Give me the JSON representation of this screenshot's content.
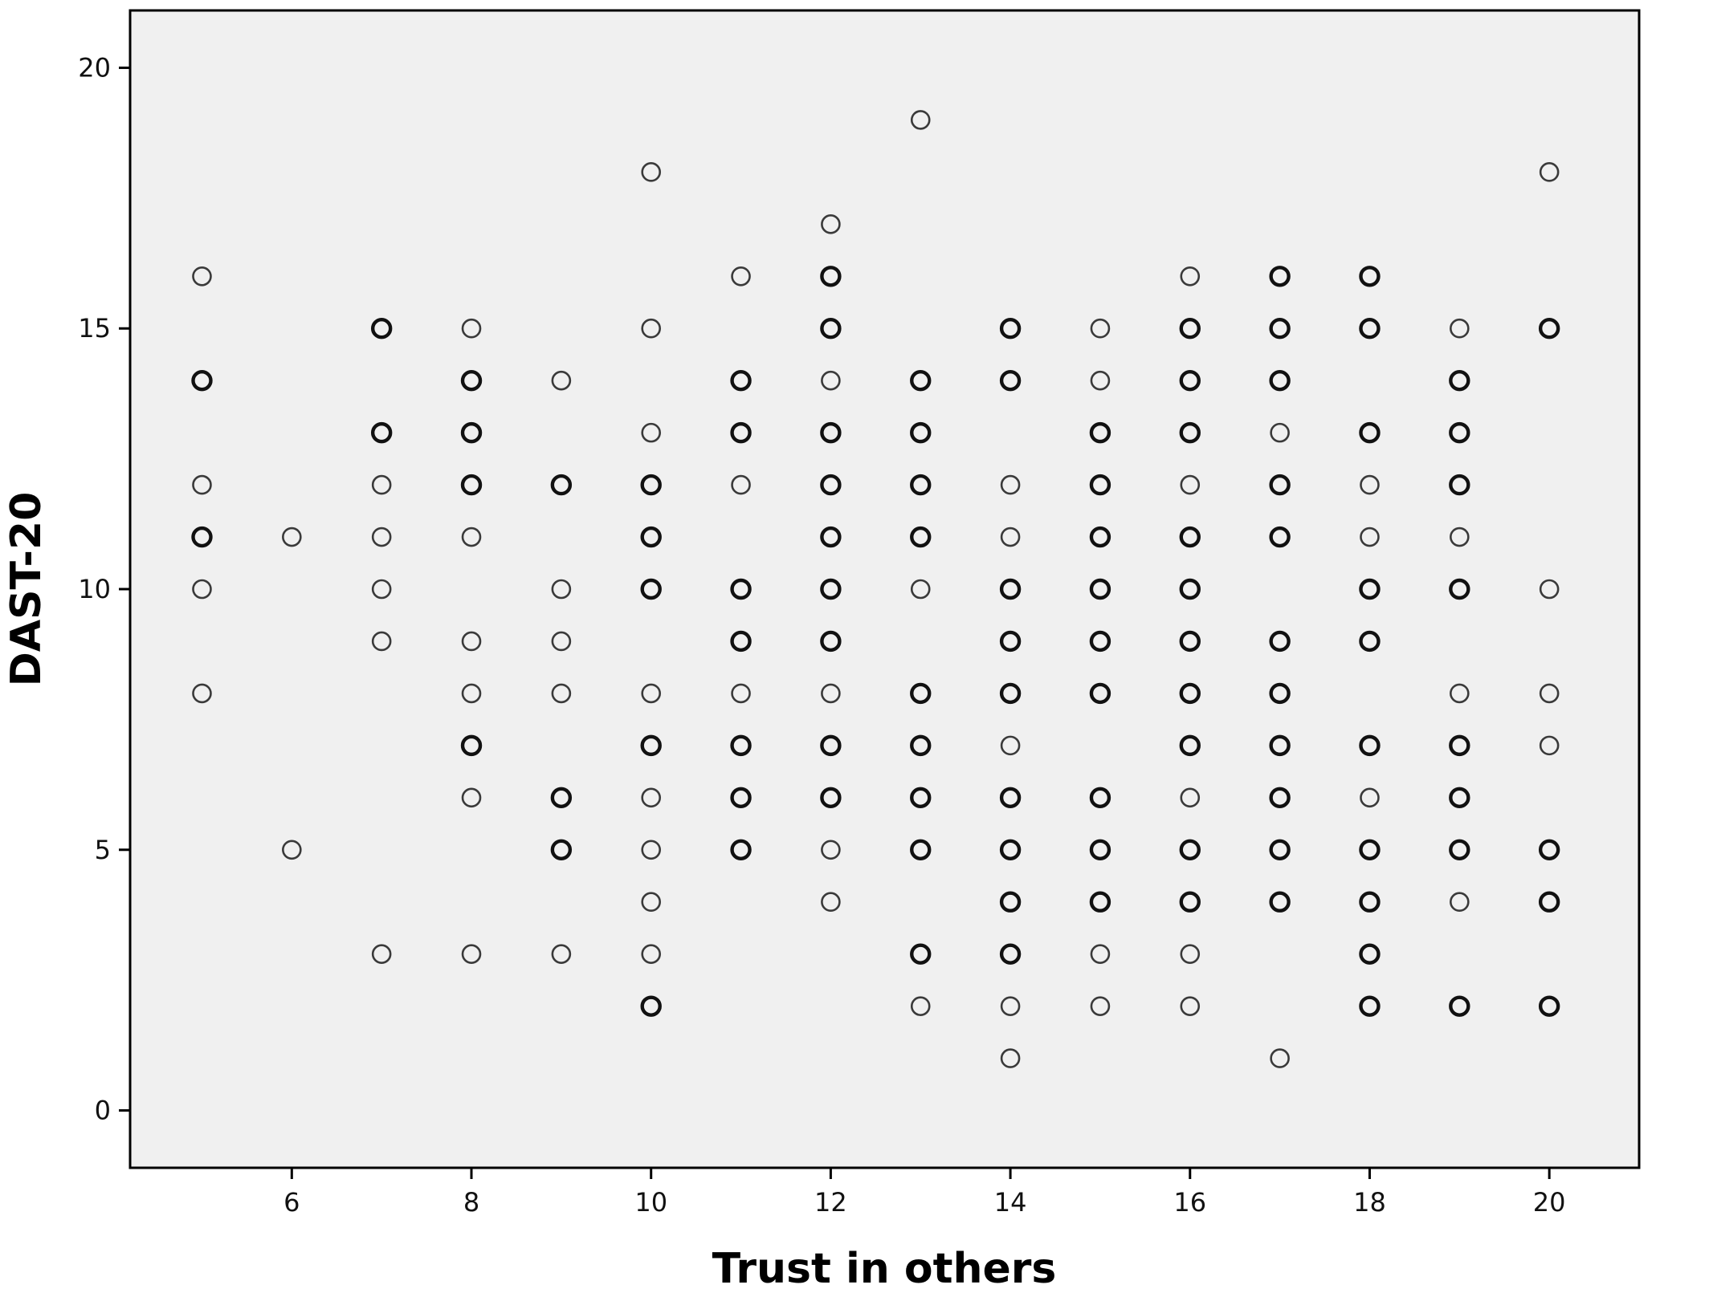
{
  "chart_data": {
    "type": "scatter",
    "title": "",
    "xlabel": "Trust in others",
    "ylabel": "DAST-20",
    "xlim": [
      4.2,
      21.0
    ],
    "ylim": [
      -1.1,
      21.1
    ],
    "xticks": [
      6,
      8,
      10,
      12,
      14,
      16,
      18,
      20
    ],
    "yticks": [
      0,
      5,
      10,
      15,
      20
    ],
    "grid": false,
    "legend": "none",
    "plot_background": "#f0f0f0",
    "marker": "open-circle",
    "points_single": [
      [
        5,
        16
      ],
      [
        5,
        12
      ],
      [
        5,
        10
      ],
      [
        5,
        8
      ],
      [
        6,
        11
      ],
      [
        6,
        5
      ],
      [
        7,
        12
      ],
      [
        7,
        11
      ],
      [
        7,
        10
      ],
      [
        7,
        9
      ],
      [
        7,
        3
      ],
      [
        8,
        15
      ],
      [
        8,
        11
      ],
      [
        8,
        9
      ],
      [
        8,
        8
      ],
      [
        8,
        6
      ],
      [
        8,
        3
      ],
      [
        9,
        14
      ],
      [
        9,
        10
      ],
      [
        9,
        9
      ],
      [
        9,
        8
      ],
      [
        9,
        3
      ],
      [
        10,
        18
      ],
      [
        10,
        15
      ],
      [
        10,
        13
      ],
      [
        10,
        8
      ],
      [
        10,
        6
      ],
      [
        10,
        5
      ],
      [
        10,
        4
      ],
      [
        10,
        3
      ],
      [
        11,
        16
      ],
      [
        11,
        12
      ],
      [
        11,
        8
      ],
      [
        12,
        17
      ],
      [
        12,
        14
      ],
      [
        12,
        8
      ],
      [
        12,
        5
      ],
      [
        12,
        4
      ],
      [
        13,
        19
      ],
      [
        13,
        10
      ],
      [
        13,
        2
      ],
      [
        14,
        12
      ],
      [
        14,
        11
      ],
      [
        14,
        7
      ],
      [
        14,
        2
      ],
      [
        14,
        1
      ],
      [
        15,
        15
      ],
      [
        15,
        14
      ],
      [
        15,
        3
      ],
      [
        15,
        2
      ],
      [
        16,
        16
      ],
      [
        16,
        12
      ],
      [
        16,
        6
      ],
      [
        16,
        3
      ],
      [
        16,
        2
      ],
      [
        17,
        13
      ],
      [
        17,
        1
      ],
      [
        18,
        12
      ],
      [
        18,
        11
      ],
      [
        18,
        6
      ],
      [
        19,
        15
      ],
      [
        19,
        11
      ],
      [
        19,
        8
      ],
      [
        19,
        4
      ],
      [
        20,
        18
      ],
      [
        20,
        10
      ],
      [
        20,
        8
      ],
      [
        20,
        7
      ]
    ],
    "points_multiple": [
      [
        5,
        14
      ],
      [
        5,
        11
      ],
      [
        7,
        15
      ],
      [
        7,
        13
      ],
      [
        8,
        14
      ],
      [
        8,
        13
      ],
      [
        8,
        12
      ],
      [
        8,
        7
      ],
      [
        9,
        12
      ],
      [
        9,
        6
      ],
      [
        9,
        5
      ],
      [
        10,
        12
      ],
      [
        10,
        11
      ],
      [
        10,
        10
      ],
      [
        10,
        7
      ],
      [
        10,
        2
      ],
      [
        11,
        14
      ],
      [
        11,
        13
      ],
      [
        11,
        10
      ],
      [
        11,
        9
      ],
      [
        11,
        7
      ],
      [
        11,
        6
      ],
      [
        11,
        5
      ],
      [
        12,
        16
      ],
      [
        12,
        15
      ],
      [
        12,
        13
      ],
      [
        12,
        12
      ],
      [
        12,
        11
      ],
      [
        12,
        10
      ],
      [
        12,
        9
      ],
      [
        12,
        7
      ],
      [
        12,
        6
      ],
      [
        13,
        14
      ],
      [
        13,
        13
      ],
      [
        13,
        12
      ],
      [
        13,
        11
      ],
      [
        13,
        8
      ],
      [
        13,
        7
      ],
      [
        13,
        6
      ],
      [
        13,
        5
      ],
      [
        13,
        3
      ],
      [
        14,
        15
      ],
      [
        14,
        14
      ],
      [
        14,
        10
      ],
      [
        14,
        9
      ],
      [
        14,
        8
      ],
      [
        14,
        6
      ],
      [
        14,
        5
      ],
      [
        14,
        4
      ],
      [
        14,
        3
      ],
      [
        15,
        13
      ],
      [
        15,
        12
      ],
      [
        15,
        11
      ],
      [
        15,
        10
      ],
      [
        15,
        9
      ],
      [
        15,
        8
      ],
      [
        15,
        6
      ],
      [
        15,
        5
      ],
      [
        15,
        4
      ],
      [
        16,
        15
      ],
      [
        16,
        14
      ],
      [
        16,
        13
      ],
      [
        16,
        11
      ],
      [
        16,
        10
      ],
      [
        16,
        9
      ],
      [
        16,
        8
      ],
      [
        16,
        7
      ],
      [
        16,
        5
      ],
      [
        16,
        4
      ],
      [
        17,
        16
      ],
      [
        17,
        15
      ],
      [
        17,
        14
      ],
      [
        17,
        12
      ],
      [
        17,
        11
      ],
      [
        17,
        9
      ],
      [
        17,
        8
      ],
      [
        17,
        7
      ],
      [
        17,
        6
      ],
      [
        17,
        5
      ],
      [
        17,
        4
      ],
      [
        18,
        16
      ],
      [
        18,
        15
      ],
      [
        18,
        13
      ],
      [
        18,
        10
      ],
      [
        18,
        9
      ],
      [
        18,
        7
      ],
      [
        18,
        5
      ],
      [
        18,
        4
      ],
      [
        18,
        3
      ],
      [
        18,
        2
      ],
      [
        19,
        14
      ],
      [
        19,
        13
      ],
      [
        19,
        12
      ],
      [
        19,
        10
      ],
      [
        19,
        7
      ],
      [
        19,
        6
      ],
      [
        19,
        5
      ],
      [
        19,
        2
      ],
      [
        20,
        15
      ],
      [
        20,
        5
      ],
      [
        20,
        4
      ],
      [
        20,
        2
      ]
    ]
  }
}
